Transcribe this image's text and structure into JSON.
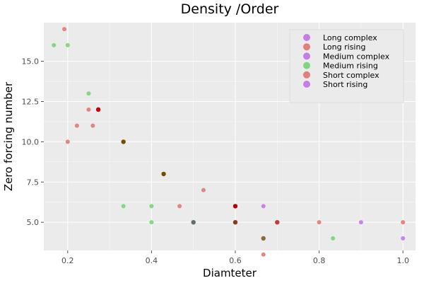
{
  "chart_data": {
    "type": "scatter",
    "title": "Density /Order",
    "xlabel": "Diamteter",
    "ylabel": "Zero forcing number",
    "xlim": [
      0.143,
      1.03
    ],
    "ylim": [
      3.25,
      17.4
    ],
    "xticks": [
      0.2,
      0.4,
      0.6,
      0.8,
      1.0
    ],
    "xtick_labels": [
      "0.2",
      "0.4",
      "0.6",
      "0.8",
      "1.0"
    ],
    "yticks": [
      5.0,
      7.5,
      10.0,
      12.5,
      15.0
    ],
    "ytick_labels": [
      "5.0",
      "7.5",
      "10.0",
      "12.5",
      "15.0"
    ],
    "grid": true,
    "legend_position": "top-right",
    "background": "#ebebeb",
    "series": [
      {
        "name": "Long complex",
        "color": "#c57ee6",
        "points": []
      },
      {
        "name": "Long rising",
        "color": "#e07f7c",
        "points": []
      },
      {
        "name": "Medium complex",
        "color": "#c57ee6",
        "points": []
      },
      {
        "name": "Medium rising",
        "color": "#7fd67f",
        "points": [
          [
            0.167,
            16
          ],
          [
            0.2,
            16
          ],
          [
            0.25,
            13
          ],
          [
            0.333,
            6
          ],
          [
            0.4,
            6
          ],
          [
            0.4,
            5
          ],
          [
            0.833,
            4
          ]
        ]
      },
      {
        "name": "Short complex",
        "color": "#e07f7c",
        "points": [
          [
            0.192,
            17
          ],
          [
            0.2,
            10
          ],
          [
            0.222,
            11
          ],
          [
            0.25,
            12
          ],
          [
            0.26,
            11
          ],
          [
            0.467,
            6
          ],
          [
            0.524,
            7
          ],
          [
            0.667,
            3
          ],
          [
            0.8,
            5
          ],
          [
            1.0,
            5
          ]
        ]
      },
      {
        "name": "Short rising",
        "color": "#c57ee6",
        "points": [
          [
            0.667,
            6
          ],
          [
            0.9,
            5
          ],
          [
            1.0,
            4
          ]
        ]
      }
    ],
    "overlap_points": [
      {
        "x": 0.273,
        "y": 12,
        "color": "#c00000"
      },
      {
        "x": 0.333,
        "y": 10,
        "color": "#705000"
      },
      {
        "x": 0.429,
        "y": 8,
        "color": "#705000"
      },
      {
        "x": 0.5,
        "y": 5,
        "color": "#607070"
      },
      {
        "x": 0.6,
        "y": 6,
        "color": "#b00000"
      },
      {
        "x": 0.6,
        "y": 5,
        "color": "#8a3a20"
      },
      {
        "x": 0.667,
        "y": 4,
        "color": "#8a6a3a"
      },
      {
        "x": 0.7,
        "y": 5,
        "color": "#c83a3a"
      }
    ]
  }
}
